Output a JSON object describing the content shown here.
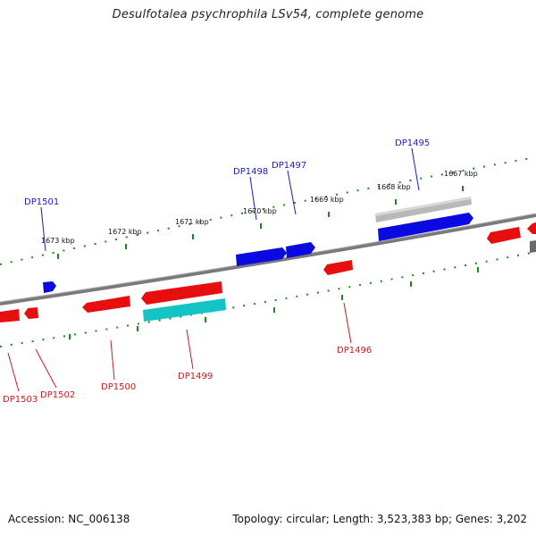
{
  "title": "Desulfotalea psychrophila LSv54, complete genome",
  "footer": {
    "accession": "Accession: NC_006138",
    "summary": "Topology: circular; Length: 3,523,383 bp; Genes: 3,202"
  },
  "colors": {
    "forward_gene": "#0a0ae0",
    "reverse_gene": "#e60e0e",
    "rna_gene": "#12c4c4",
    "pseudo_gene": "#b8b8b8",
    "backbone": "#7a7a7a",
    "ticks": "#1a8a1a",
    "label_blue": "#1a1acc",
    "label_red": "#cc1a1a"
  },
  "scale_labels": [
    "1673 kbp",
    "1672 kbp",
    "1671 kbp",
    "1670 kbp",
    "1669 kbp",
    "1668 kbp",
    "1667 kbp"
  ],
  "gene_labels": {
    "DP1495": "DP1495",
    "DP1496": "DP1496",
    "DP1497": "DP1497",
    "DP1498": "DP1498",
    "DP1499": "DP1499",
    "DP1500": "DP1500",
    "DP1501": "DP1501",
    "DP1502": "DP1502",
    "DP1503": "DP1503"
  }
}
